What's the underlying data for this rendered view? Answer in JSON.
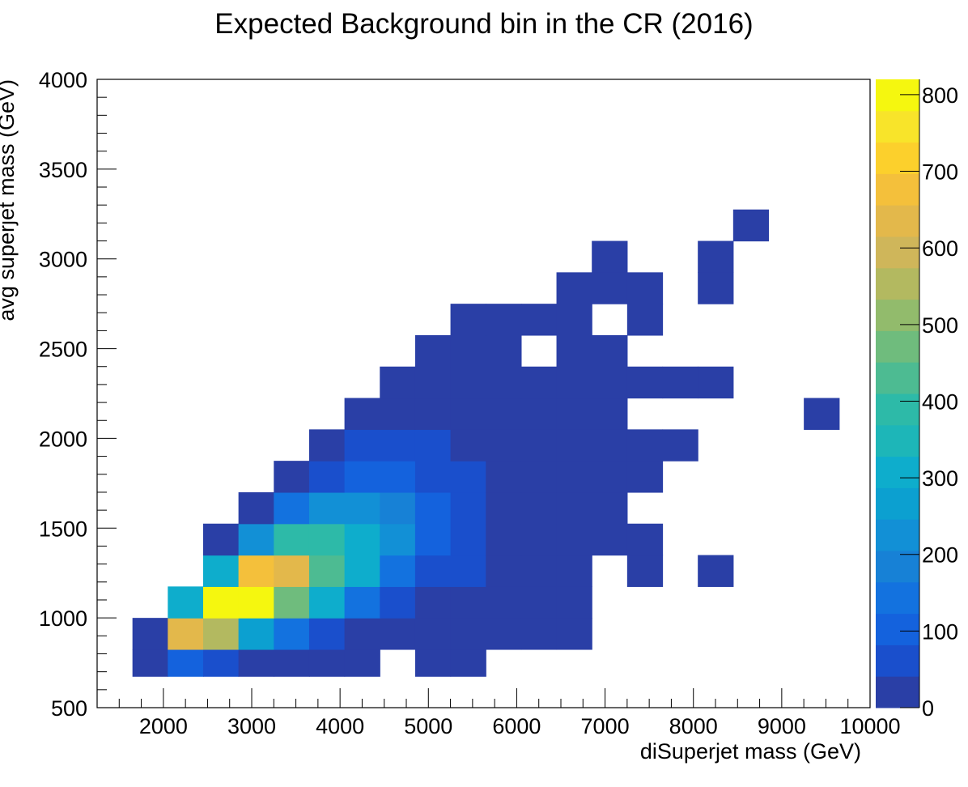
{
  "chart_data": {
    "type": "heatmap",
    "title": "Expected Background bin in the CR (2016)",
    "xlabel": "diSuperjet mass (GeV)",
    "ylabel": "avg superjet mass (GeV)",
    "xlim": [
      1250,
      10000
    ],
    "ylim": [
      500,
      4000
    ],
    "x_ticks": [
      2000,
      3000,
      4000,
      5000,
      6000,
      7000,
      8000,
      9000,
      10000
    ],
    "y_ticks": [
      500,
      1000,
      1500,
      2000,
      2500,
      3000,
      3500,
      4000
    ],
    "colorbar": {
      "min": 0,
      "max": 820,
      "ticks": [
        0,
        100,
        200,
        300,
        400,
        500,
        600,
        700,
        800
      ]
    },
    "x_bin_edges": [
      1650,
      2050,
      2450,
      2850,
      3250,
      3650,
      4050,
      4450,
      4850,
      5250,
      5650,
      6050,
      6450,
      6850,
      7250,
      7650,
      8050,
      8450,
      8850,
      9250,
      9650
    ],
    "y_bin_edges": [
      675,
      825,
      1000,
      1175,
      1350,
      1525,
      1700,
      1875,
      2050,
      2225,
      2400,
      2575,
      2750,
      2925,
      3100,
      3275
    ],
    "values": [
      [
        40,
        120,
        70,
        15,
        15,
        15,
        15,
        0,
        15,
        15,
        0,
        0,
        0,
        0,
        0,
        0,
        0,
        0,
        0,
        0
      ],
      [
        40,
        620,
        540,
        280,
        140,
        60,
        15,
        15,
        15,
        15,
        15,
        15,
        15,
        0,
        0,
        0,
        0,
        0,
        0,
        0
      ],
      [
        0,
        290,
        820,
        780,
        470,
        290,
        150,
        60,
        15,
        15,
        15,
        15,
        15,
        0,
        0,
        0,
        0,
        0,
        0,
        0
      ],
      [
        0,
        0,
        290,
        690,
        640,
        450,
        290,
        160,
        70,
        70,
        15,
        15,
        15,
        0,
        15,
        0,
        15,
        0,
        0,
        0
      ],
      [
        0,
        0,
        15,
        230,
        400,
        400,
        300,
        220,
        100,
        70,
        15,
        15,
        15,
        15,
        15,
        0,
        0,
        0,
        0,
        0
      ],
      [
        0,
        0,
        0,
        15,
        140,
        230,
        230,
        170,
        110,
        80,
        15,
        15,
        15,
        15,
        0,
        0,
        0,
        0,
        0,
        0
      ],
      [
        0,
        0,
        0,
        0,
        15,
        80,
        110,
        110,
        80,
        80,
        15,
        15,
        15,
        15,
        15,
        0,
        0,
        0,
        0,
        0
      ],
      [
        0,
        0,
        0,
        0,
        0,
        15,
        70,
        70,
        70,
        15,
        15,
        15,
        15,
        15,
        15,
        15,
        0,
        0,
        0,
        0
      ],
      [
        0,
        0,
        0,
        0,
        0,
        0,
        15,
        15,
        15,
        15,
        15,
        15,
        15,
        15,
        0,
        0,
        0,
        0,
        0,
        15
      ],
      [
        0,
        0,
        0,
        0,
        0,
        0,
        0,
        15,
        15,
        15,
        15,
        15,
        15,
        15,
        15,
        15,
        15,
        0,
        0,
        0
      ],
      [
        0,
        0,
        0,
        0,
        0,
        0,
        0,
        0,
        15,
        15,
        15,
        0,
        15,
        15,
        0,
        0,
        0,
        0,
        0,
        0
      ],
      [
        0,
        0,
        0,
        0,
        0,
        0,
        0,
        0,
        0,
        15,
        15,
        15,
        15,
        0,
        15,
        0,
        0,
        0,
        0,
        0
      ],
      [
        0,
        0,
        0,
        0,
        0,
        0,
        0,
        0,
        0,
        0,
        0,
        0,
        15,
        15,
        15,
        0,
        15,
        0,
        0,
        0
      ],
      [
        0,
        0,
        0,
        0,
        0,
        0,
        0,
        0,
        0,
        0,
        0,
        0,
        0,
        15,
        0,
        0,
        15,
        0,
        0,
        0
      ],
      [
        0,
        0,
        0,
        0,
        0,
        0,
        0,
        0,
        0,
        0,
        0,
        0,
        0,
        0,
        0,
        0,
        0,
        15,
        0,
        0
      ]
    ],
    "palette": [
      "#2a3fa6",
      "#1a4fcc",
      "#1462dd",
      "#1372df",
      "#1781d6",
      "#1290d6",
      "#0ca0d0",
      "#0eadcc",
      "#1db6b8",
      "#2dbaa8",
      "#4dbb92",
      "#6fbc7d",
      "#92bb6c",
      "#b3b960",
      "#cfb65a",
      "#e3b84b",
      "#f4c03b",
      "#fcd02c",
      "#f8e42a",
      "#f5f70f"
    ],
    "grid": false,
    "legend": "none"
  }
}
